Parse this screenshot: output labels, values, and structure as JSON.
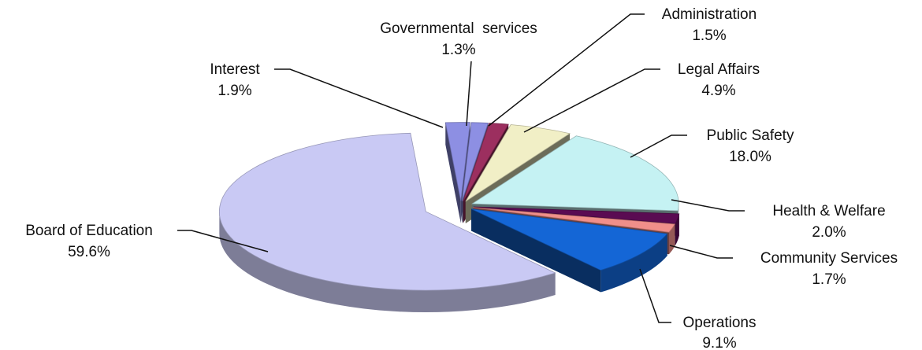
{
  "chart_data": {
    "type": "pie",
    "style": "3d-exploded",
    "title": "",
    "legend": "none",
    "slices": [
      {
        "label": "Governmental  services",
        "value_label": "1.3%",
        "value": 1.3,
        "color": "#8d8fe3"
      },
      {
        "label": "Administration",
        "value_label": "1.5%",
        "value": 1.5,
        "color": "#9c2f5f"
      },
      {
        "label": "Legal Affairs",
        "value_label": "4.9%",
        "value": 4.9,
        "color": "#f1efc6"
      },
      {
        "label": "Public Safety",
        "value_label": "18.0%",
        "value": 18.0,
        "color": "#c5f2f3"
      },
      {
        "label": "Health & Welfare",
        "value_label": "2.0%",
        "value": 2.0,
        "color": "#5a0b52"
      },
      {
        "label": "Community Services",
        "value_label": "1.7%",
        "value": 1.7,
        "color": "#f08f8a"
      },
      {
        "label": "Operations",
        "value_label": "9.1%",
        "value": 9.1,
        "color": "#1466d6"
      },
      {
        "label": "Board of Education",
        "value_label": "59.6%",
        "value": 59.6,
        "color": "#c9c9f4"
      },
      {
        "label": "Interest",
        "value_label": "1.9%",
        "value": 1.9,
        "color": "#8d8fe3"
      }
    ]
  }
}
